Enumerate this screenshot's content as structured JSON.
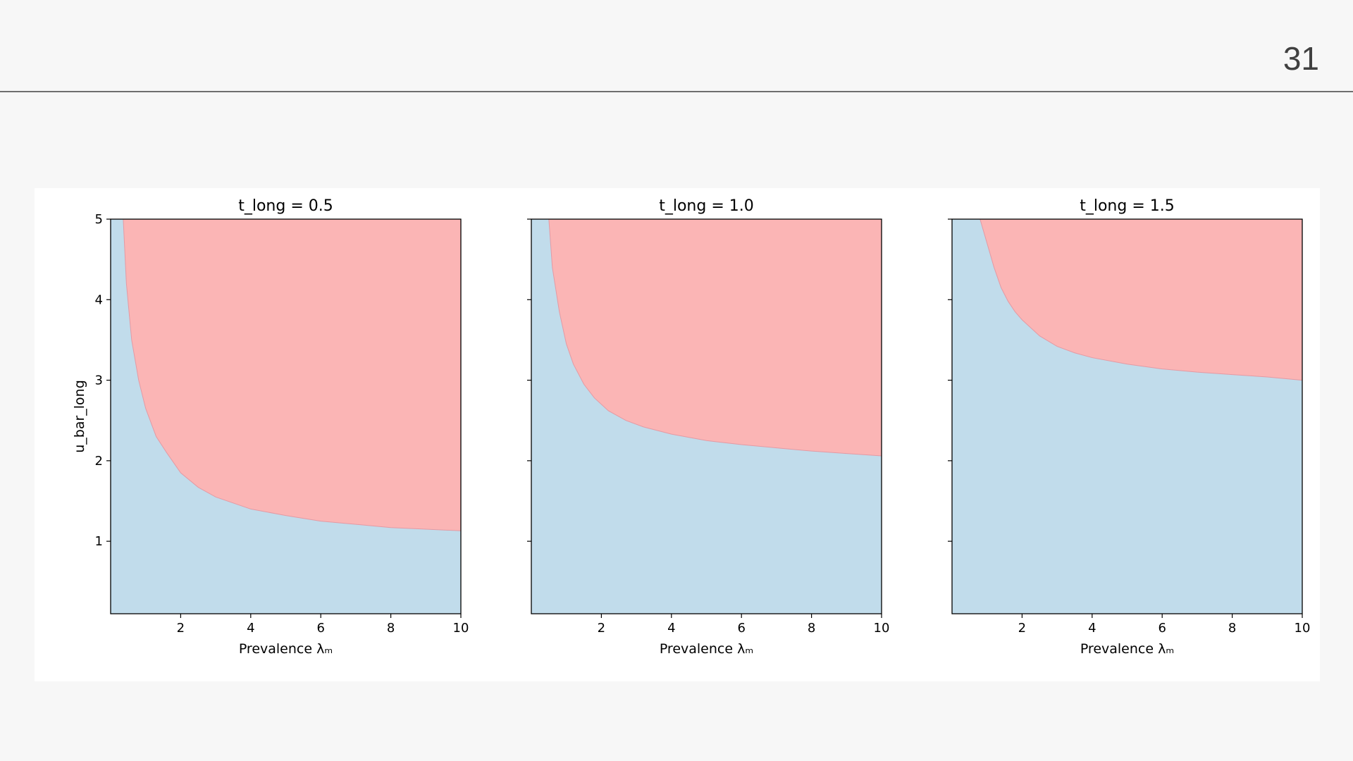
{
  "slide": {
    "page_number": "31"
  },
  "chart_data": [
    {
      "type": "area",
      "title": "t_long = 0.5",
      "xlabel": "Prevalence λₘ",
      "ylabel": "u_bar_long",
      "xlim": [
        0,
        10
      ],
      "ylim": [
        0.1,
        5
      ],
      "xticks": [
        "2",
        "4",
        "6",
        "8",
        "10"
      ],
      "yticks": [
        "1",
        "2",
        "3",
        "4",
        "5"
      ],
      "colors": {
        "below": "#c1dceb",
        "above": "#fbb5b5",
        "boundary": "#e39aa4"
      },
      "boundary": {
        "x": [
          0.36,
          0.45,
          0.6,
          0.8,
          1.0,
          1.3,
          1.6,
          2.0,
          2.5,
          3.0,
          4.0,
          5.0,
          6.0,
          7.0,
          8.0,
          9.0,
          10.0
        ],
        "y": [
          5.0,
          4.2,
          3.5,
          3.0,
          2.65,
          2.3,
          2.1,
          1.85,
          1.67,
          1.55,
          1.4,
          1.32,
          1.25,
          1.21,
          1.17,
          1.15,
          1.13
        ]
      }
    },
    {
      "type": "area",
      "title": "t_long = 1.0",
      "xlabel": "Prevalence λₘ",
      "ylabel": "",
      "xlim": [
        0,
        10
      ],
      "ylim": [
        0.1,
        5
      ],
      "xticks": [
        "2",
        "4",
        "6",
        "8",
        "10"
      ],
      "yticks": [
        "",
        "",
        "",
        "",
        ""
      ],
      "colors": {
        "below": "#c1dceb",
        "above": "#fbb5b5",
        "boundary": "#e39aa4"
      },
      "boundary": {
        "x": [
          0.5,
          0.6,
          0.8,
          1.0,
          1.2,
          1.5,
          1.8,
          2.2,
          2.7,
          3.2,
          4.0,
          5.0,
          6.0,
          7.0,
          8.0,
          9.0,
          10.0
        ],
        "y": [
          5.0,
          4.4,
          3.85,
          3.45,
          3.2,
          2.95,
          2.78,
          2.62,
          2.5,
          2.42,
          2.33,
          2.25,
          2.2,
          2.16,
          2.12,
          2.09,
          2.06
        ]
      }
    },
    {
      "type": "area",
      "title": "t_long = 1.5",
      "xlabel": "Prevalence λₘ",
      "ylabel": "",
      "xlim": [
        0,
        10
      ],
      "ylim": [
        0.1,
        5
      ],
      "xticks": [
        "2",
        "4",
        "6",
        "8",
        "10"
      ],
      "yticks": [
        "",
        "",
        "",
        "",
        ""
      ],
      "colors": {
        "below": "#c1dceb",
        "above": "#fbb5b5",
        "boundary": "#e39aa4"
      },
      "boundary": {
        "x": [
          0.8,
          0.9,
          1.0,
          1.2,
          1.4,
          1.6,
          1.8,
          2.0,
          2.5,
          3.0,
          3.5,
          4.0,
          5.0,
          6.0,
          7.0,
          8.0,
          9.0,
          10.0
        ],
        "y": [
          5.0,
          4.85,
          4.7,
          4.4,
          4.15,
          3.98,
          3.85,
          3.75,
          3.55,
          3.42,
          3.34,
          3.28,
          3.2,
          3.14,
          3.1,
          3.07,
          3.04,
          3.0
        ]
      }
    }
  ]
}
